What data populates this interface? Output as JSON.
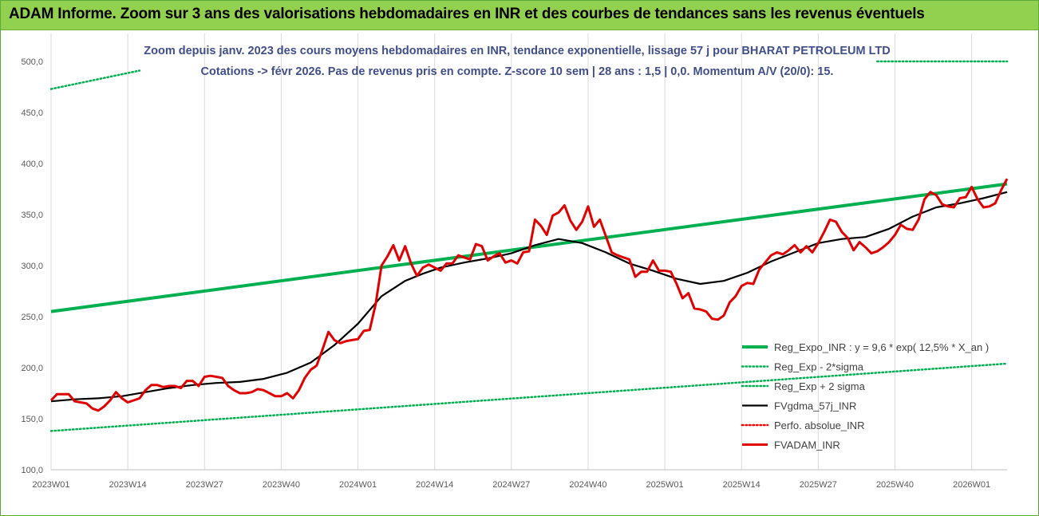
{
  "banner": {
    "title": "ADAM Informe. Zoom sur 3 ans des valorisations hebdomadaires en INR et des courbes de tendances sans les revenus éventuels"
  },
  "chart_data": {
    "type": "line",
    "title_lines": [
      "Zoom depuis janv. 2023 des cours moyens hebdomadaires en INR, tendance exponentielle, lissage 57 j pour BHARAT PETROLEUM LTD",
      "Cotations -> févr 2026. Pas de revenus pris en compte. Z-score 10 sem | 28 ans : 1,5 | 0,0. Momentum A/V (20/0): 15."
    ],
    "xlabel": "",
    "ylabel": "",
    "ylim": [
      100,
      500
    ],
    "yticks": [
      "100,0",
      "150,0",
      "200,0",
      "250,0",
      "300,0",
      "350,0",
      "400,0",
      "450,0",
      "500,0"
    ],
    "xlim": [
      0,
      162
    ],
    "xticks": [
      {
        "pos": 0,
        "label": "2023W01"
      },
      {
        "pos": 13,
        "label": "2023W14"
      },
      {
        "pos": 26,
        "label": "2023W27"
      },
      {
        "pos": 39,
        "label": "2023W40"
      },
      {
        "pos": 52,
        "label": "2024W01"
      },
      {
        "pos": 65,
        "label": "2024W14"
      },
      {
        "pos": 78,
        "label": "2024W27"
      },
      {
        "pos": 91,
        "label": "2024W40"
      },
      {
        "pos": 104,
        "label": "2025W01"
      },
      {
        "pos": 117,
        "label": "2025W14"
      },
      {
        "pos": 130,
        "label": "2025W27"
      },
      {
        "pos": 143,
        "label": "2025W40"
      },
      {
        "pos": 156,
        "label": "2026W01"
      }
    ],
    "grid_vertical": true,
    "legend_position": "right",
    "series": [
      {
        "name": "Reg_Expo_INR : y = 9,6 * exp( 12,5% *  X_an )",
        "color": "#00b050",
        "style": "solid",
        "x": [
          0,
          162
        ],
        "y": [
          255,
          380
        ]
      },
      {
        "name": "Reg_Exp - 2*sigma",
        "color": "#00b050",
        "style": "dotted",
        "x": [
          0,
          162
        ],
        "y": [
          138,
          204
        ]
      },
      {
        "name": "Reg_Exp + 2 sigma",
        "color": "#00b050",
        "style": "dotted",
        "segments": [
          {
            "x": [
              0,
              15
            ],
            "y": [
              473,
              491
            ]
          },
          {
            "x": [
              140,
              162
            ],
            "y": [
              500,
              500
            ]
          }
        ]
      },
      {
        "name": "FVgdma_57j_INR",
        "color": "#000000",
        "style": "solid",
        "x": [
          0,
          4,
          8,
          12,
          16,
          20,
          24,
          28,
          32,
          36,
          40,
          44,
          48,
          52,
          56,
          60,
          63,
          66,
          70,
          74,
          78,
          82,
          86,
          90,
          94,
          98,
          102,
          106,
          110,
          114,
          118,
          122,
          126,
          130,
          134,
          138,
          142,
          146,
          150,
          154,
          158,
          162
        ],
        "y": [
          167,
          169,
          170,
          172,
          176,
          180,
          183,
          185,
          186,
          189,
          195,
          205,
          222,
          243,
          270,
          285,
          292,
          298,
          303,
          307,
          312,
          320,
          326,
          322,
          313,
          302,
          295,
          287,
          282,
          285,
          293,
          304,
          313,
          322,
          326,
          328,
          336,
          348,
          357,
          361,
          366,
          372
        ]
      },
      {
        "name": "Perfo. absolue_INR",
        "color": "#ff0000",
        "style": "dotted",
        "x": [],
        "y": []
      },
      {
        "name": "FVADAM_INR",
        "color": "#e00000",
        "style": "solid",
        "x": [
          0,
          1,
          2,
          3,
          4,
          5,
          6,
          7,
          8,
          9,
          10,
          11,
          12,
          13,
          14,
          15,
          16,
          17,
          18,
          19,
          20,
          21,
          22,
          23,
          24,
          25,
          26,
          27,
          28,
          29,
          30,
          31,
          32,
          33,
          34,
          35,
          36,
          37,
          38,
          39,
          40,
          41,
          42,
          43,
          44,
          45,
          46,
          47,
          48,
          49,
          50,
          51,
          52,
          53,
          54,
          55,
          56,
          57,
          58,
          59,
          60,
          61,
          62,
          63,
          64,
          65,
          66,
          67,
          68,
          69,
          70,
          71,
          72,
          73,
          74,
          75,
          76,
          77,
          78,
          79,
          80,
          81,
          82,
          83,
          84,
          85,
          86,
          87,
          88,
          89,
          90,
          91,
          92,
          93,
          94,
          95,
          96,
          97,
          98,
          99,
          100,
          101,
          102,
          103,
          104,
          105,
          106,
          107,
          108,
          109,
          110,
          111,
          112,
          113,
          114,
          115,
          116,
          117,
          118,
          119,
          120,
          121,
          122,
          123,
          124,
          125,
          126,
          127,
          128,
          129,
          130,
          131,
          132,
          133,
          134,
          135,
          136,
          137,
          138,
          139,
          140,
          141,
          142,
          143,
          144,
          145,
          146,
          147,
          148,
          149,
          150,
          151,
          152,
          153,
          154,
          155,
          156,
          157,
          158,
          159,
          160,
          161,
          162
        ],
        "y": [
          168,
          174,
          174,
          174,
          167,
          166,
          165,
          160,
          158,
          162,
          168,
          176,
          170,
          166,
          168,
          170,
          178,
          183,
          183,
          181,
          182,
          182,
          180,
          187,
          187,
          182,
          191,
          192,
          191,
          190,
          182,
          178,
          175,
          175,
          176,
          179,
          178,
          175,
          172,
          172,
          175,
          170,
          178,
          190,
          198,
          202,
          218,
          235,
          227,
          224,
          226,
          227,
          228,
          236,
          237,
          262,
          300,
          309,
          320,
          305,
          319,
          302,
          290,
          298,
          301,
          298,
          295,
          302,
          302,
          310,
          308,
          306,
          321,
          319,
          305,
          309,
          312,
          303,
          305,
          302,
          313,
          314,
          345,
          339,
          330,
          349,
          352,
          359,
          344,
          335,
          343,
          358,
          338,
          345,
          329,
          313,
          310,
          308,
          306,
          289,
          294,
          294,
          305,
          295,
          295,
          294,
          282,
          268,
          273,
          258,
          257,
          255,
          248,
          247,
          251,
          264,
          270,
          280,
          283,
          282,
          296,
          303,
          310,
          313,
          311,
          315,
          320,
          313,
          319,
          313,
          322,
          333,
          345,
          343,
          333,
          327,
          315,
          323,
          318,
          312,
          314,
          318,
          323,
          330,
          340,
          336,
          335,
          345,
          365,
          372,
          369,
          360,
          358,
          357,
          366,
          367,
          377,
          365,
          357,
          358,
          361,
          374,
          385
        ]
      }
    ]
  }
}
